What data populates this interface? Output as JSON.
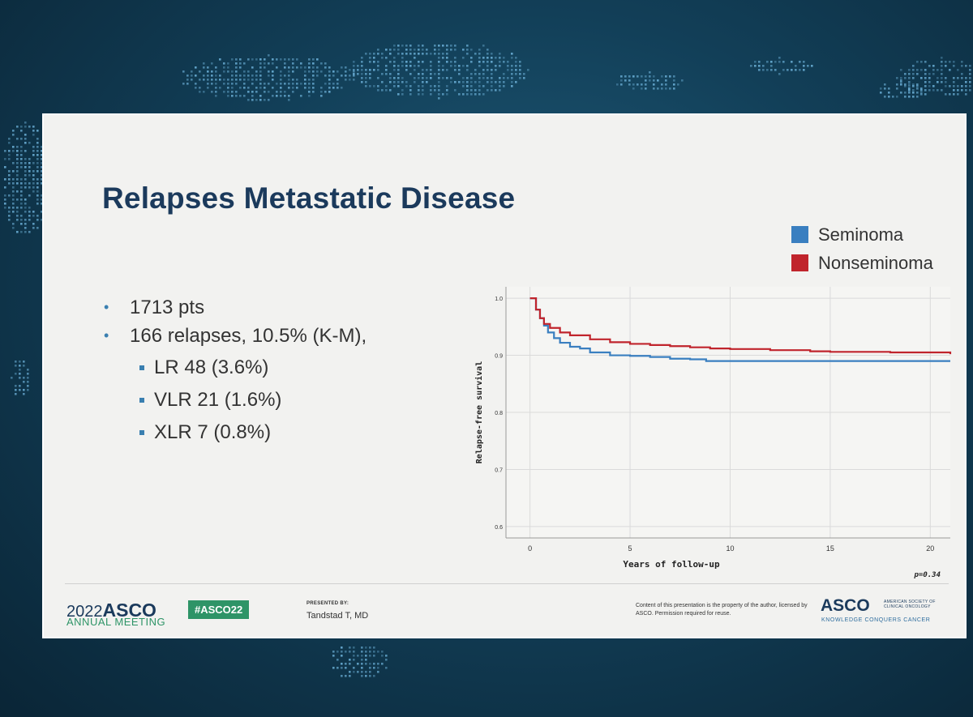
{
  "slide": {
    "title": "Relapses Metastatic Disease",
    "bullets": [
      {
        "text": "1713 pts"
      },
      {
        "text": "166 relapses, 10.5% (K-M),",
        "sub": [
          "LR 48 (3.6%)",
          "VLR 21 (1.6%)",
          "XLR 7 (0.8%)"
        ]
      }
    ]
  },
  "legend": [
    {
      "label": "Seminoma",
      "color": "#3a7fc0"
    },
    {
      "label": "Nonseminoma",
      "color": "#c0242c"
    }
  ],
  "chart_data": {
    "type": "line",
    "title": "",
    "xlabel": "Years of follow-up",
    "ylabel": "Relapse-free survival",
    "xlim": [
      -1.2,
      21
    ],
    "ylim": [
      0.58,
      1.02
    ],
    "xticks": [
      0,
      5,
      10,
      15,
      20
    ],
    "yticks": [
      0.6,
      0.7,
      0.8,
      0.9,
      1.0
    ],
    "ytick_labels": [
      "0.6",
      "0.7",
      "0.8",
      "0.9",
      "1.0"
    ],
    "grid": true,
    "annotation": "p=0.34",
    "series": [
      {
        "name": "Seminoma",
        "color": "#3a7fc0",
        "x": [
          0,
          0.3,
          0.5,
          0.7,
          0.9,
          1.2,
          1.5,
          2,
          2.5,
          3,
          4,
          5,
          6,
          7,
          8,
          8.8,
          10,
          12,
          15,
          18,
          21
        ],
        "y": [
          1.0,
          0.98,
          0.965,
          0.952,
          0.94,
          0.93,
          0.922,
          0.915,
          0.912,
          0.905,
          0.9,
          0.899,
          0.897,
          0.894,
          0.893,
          0.89,
          0.89,
          0.89,
          0.89,
          0.89,
          0.89
        ]
      },
      {
        "name": "Nonseminoma",
        "color": "#c0242c",
        "x": [
          0,
          0.3,
          0.5,
          0.7,
          1,
          1.5,
          2,
          3,
          4,
          5,
          6,
          7,
          8,
          9,
          10,
          12,
          14,
          15,
          18,
          21
        ],
        "y": [
          1.0,
          0.98,
          0.965,
          0.955,
          0.948,
          0.94,
          0.935,
          0.928,
          0.923,
          0.92,
          0.918,
          0.916,
          0.914,
          0.912,
          0.911,
          0.909,
          0.907,
          0.906,
          0.905,
          0.902
        ]
      }
    ]
  },
  "footer": {
    "year": "2022",
    "brand": "ASCO",
    "meeting": "ANNUAL MEETING",
    "hashtag": "#ASCO22",
    "presented_by": "PRESENTED BY:",
    "presenter": "Tandstad T, MD",
    "disclaimer": "Content of this presentation is the property of the author, licensed by ASCO. Permission required for reuse.",
    "logo": "ASCO",
    "society": "AMERICAN SOCIETY OF CLINICAL ONCOLOGY",
    "tagline": "KNOWLEDGE CONQUERS CANCER"
  }
}
